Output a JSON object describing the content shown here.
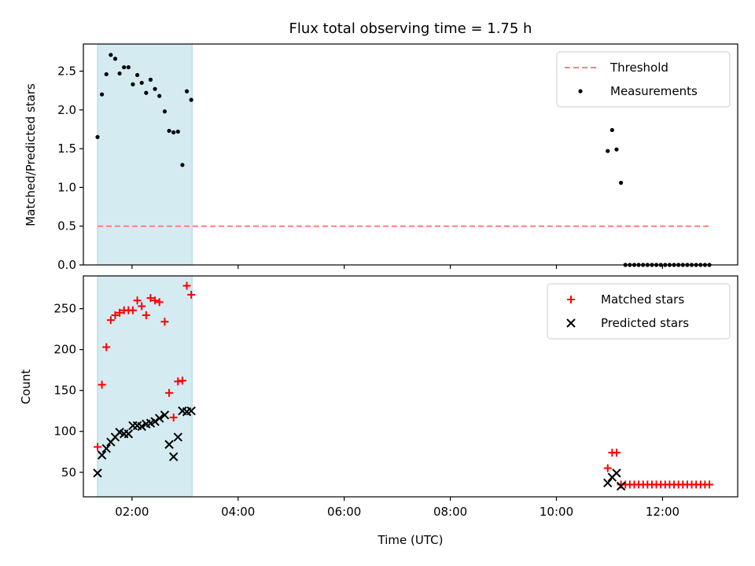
{
  "chart_data": [
    {
      "type": "scatter",
      "title": "Flux total observing time = 1.75 h",
      "ylabel": "Matched/Predicted stars",
      "xlim": [
        "01:05",
        "13:25"
      ],
      "ylim": [
        0,
        2.85
      ],
      "yticks": [
        0.0,
        0.5,
        1.0,
        1.5,
        2.0,
        2.5
      ],
      "ytick_labels": [
        "0.0",
        "0.5",
        "1.0",
        "1.5",
        "2.0",
        "2.5"
      ],
      "shaded_region": {
        "x_start": "01:21",
        "x_end": "03:08",
        "color": "#d4ebf2"
      },
      "legend_position": "upper right",
      "threshold": {
        "name": "Threshold",
        "value": 0.5,
        "x_start": "01:21",
        "x_end": "12:53",
        "color": "#ff7f7f"
      },
      "series": [
        {
          "name": "Measurements",
          "color": "#000000",
          "x": [
            "01:21",
            "01:26",
            "01:31",
            "01:36",
            "01:41",
            "01:46",
            "01:51",
            "01:56",
            "02:01",
            "02:06",
            "02:11",
            "02:16",
            "02:21",
            "02:26",
            "02:31",
            "02:37",
            "02:42",
            "02:47",
            "02:52",
            "02:57",
            "03:02",
            "03:07",
            "10:58",
            "11:03",
            "11:08",
            "11:13",
            "11:18",
            "11:23",
            "11:28",
            "11:33",
            "11:38",
            "11:43",
            "11:48",
            "11:53",
            "11:58",
            "12:03",
            "12:08",
            "12:13",
            "12:18",
            "12:23",
            "12:28",
            "12:33",
            "12:38",
            "12:43",
            "12:48",
            "12:53"
          ],
          "y": [
            1.65,
            2.2,
            2.46,
            2.71,
            2.66,
            2.47,
            2.55,
            2.55,
            2.33,
            2.45,
            2.35,
            2.22,
            2.39,
            2.27,
            2.18,
            1.98,
            1.73,
            1.71,
            1.72,
            1.29,
            2.24,
            2.13,
            1.47,
            1.74,
            1.49,
            1.06,
            0,
            0,
            0,
            0,
            0,
            0,
            0,
            0,
            0,
            0,
            0,
            0,
            0,
            0,
            0,
            0,
            0,
            0,
            0,
            0
          ]
        }
      ]
    },
    {
      "type": "scatter",
      "xlabel": "Time (UTC)",
      "ylabel": "Count",
      "xlim": [
        "01:05",
        "13:25"
      ],
      "ylim": [
        20,
        290
      ],
      "yticks": [
        50,
        100,
        150,
        200,
        250
      ],
      "ytick_labels": [
        "50",
        "100",
        "150",
        "200",
        "250"
      ],
      "xticks": [
        "02:00",
        "04:00",
        "06:00",
        "08:00",
        "10:00",
        "12:00"
      ],
      "shaded_region": {
        "x_start": "01:21",
        "x_end": "03:08",
        "color": "#d4ebf2"
      },
      "legend_position": "upper right",
      "series": [
        {
          "name": "Matched stars",
          "marker": "plus",
          "color": "#ff0000",
          "x": [
            "01:21",
            "01:26",
            "01:31",
            "01:36",
            "01:41",
            "01:46",
            "01:51",
            "01:56",
            "02:01",
            "02:06",
            "02:11",
            "02:16",
            "02:21",
            "02:26",
            "02:31",
            "02:37",
            "02:42",
            "02:47",
            "02:52",
            "02:57",
            "03:02",
            "03:07",
            "10:58",
            "11:03",
            "11:08",
            "11:13",
            "11:18",
            "11:23",
            "11:28",
            "11:33",
            "11:38",
            "11:43",
            "11:48",
            "11:53",
            "11:58",
            "12:03",
            "12:08",
            "12:13",
            "12:18",
            "12:23",
            "12:28",
            "12:33",
            "12:38",
            "12:43",
            "12:48",
            "12:53"
          ],
          "y": [
            81,
            157,
            203,
            236,
            242,
            245,
            248,
            248,
            248,
            260,
            253,
            242,
            263,
            260,
            258,
            234,
            147,
            117,
            161,
            162,
            278,
            267,
            55,
            74,
            74,
            35,
            35,
            35,
            35,
            35,
            35,
            35,
            35,
            35,
            35,
            35,
            35,
            35,
            35,
            35,
            35,
            35,
            35,
            35,
            35,
            35
          ]
        },
        {
          "name": "Predicted stars",
          "marker": "x",
          "color": "#000000",
          "x": [
            "01:21",
            "01:26",
            "01:31",
            "01:36",
            "01:41",
            "01:46",
            "01:51",
            "01:56",
            "02:01",
            "02:06",
            "02:11",
            "02:16",
            "02:21",
            "02:26",
            "02:31",
            "02:37",
            "02:42",
            "02:47",
            "02:52",
            "02:57",
            "03:02",
            "03:07",
            "10:58",
            "11:03",
            "11:08",
            "11:13"
          ],
          "y": [
            49,
            71,
            79,
            87,
            93,
            99,
            97,
            97,
            107,
            107,
            106,
            109,
            110,
            112,
            116,
            120,
            84,
            69,
            93,
            125,
            124,
            125,
            37,
            44,
            49,
            33
          ]
        }
      ]
    }
  ]
}
